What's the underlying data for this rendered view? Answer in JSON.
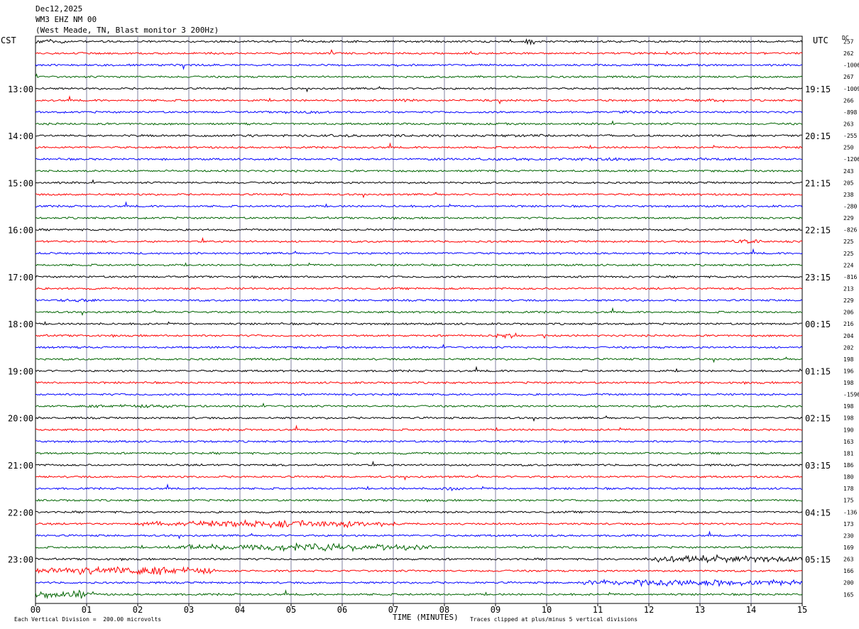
{
  "header": {
    "date": "Dec12,2025",
    "station": "WM3 EHZ NM 00",
    "location": "(West Meade, TN, Blast monitor 3 200Hz)"
  },
  "left_zone": "CST",
  "right_zone": "UTC",
  "dc_label": "DC",
  "footer": {
    "division_note": "Each Vertical Division =  200.00 microvolts",
    "xlabel": "TIME (MINUTES)",
    "clip_note": "Traces clipped at plus/minus 5 vertical divisions"
  },
  "colors": {
    "trace_cycle": [
      "#000000",
      "#ff0000",
      "#0000ff",
      "#006400"
    ],
    "grid": "#8080a0"
  },
  "chart_data": {
    "type": "line",
    "title": "WM3 EHZ NM 00",
    "xlabel": "TIME (MINUTES)",
    "xlim": [
      0,
      15
    ],
    "x_ticks": [
      "00",
      "01",
      "02",
      "03",
      "04",
      "05",
      "06",
      "07",
      "08",
      "09",
      "10",
      "11",
      "12",
      "13",
      "14",
      "15"
    ],
    "left_hour_labels": [
      "13:00",
      "14:00",
      "15:00",
      "16:00",
      "17:00",
      "18:00",
      "19:00",
      "20:00",
      "21:00",
      "22:00",
      "23:00"
    ],
    "right_hour_labels": [
      "19:15",
      "20:15",
      "21:15",
      "22:15",
      "23:15",
      "00:15",
      "01:15",
      "02:15",
      "03:15",
      "04:15",
      "05:15"
    ],
    "dc_offsets": [
      "257",
      "262",
      "-1006",
      "267",
      "-1009",
      "266",
      "-898",
      "263",
      "-255",
      "250",
      "-1206",
      "243",
      "205",
      "238",
      "-280",
      "229",
      "-826",
      "225",
      "225",
      "224",
      "-816",
      "213",
      "229",
      "206",
      "216",
      "204",
      "202",
      "198",
      "196",
      "198",
      "-1596",
      "198",
      "198",
      "190",
      "163",
      "181",
      "186",
      "180",
      "178",
      "175",
      "-136",
      "173",
      "230",
      "169",
      "263",
      "166",
      "200",
      "165"
    ],
    "events": [
      {
        "trace": 0,
        "x_start": 0.0,
        "x_end": 0.6,
        "level": 2.2
      },
      {
        "trace": 0,
        "x_start": 9.55,
        "x_end": 9.75,
        "level": 5
      },
      {
        "trace": 5,
        "x_start": 7.0,
        "x_end": 7.4,
        "level": 2
      },
      {
        "trace": 5,
        "x_start": 12.6,
        "x_end": 13.6,
        "level": 1.8
      },
      {
        "trace": 6,
        "x_start": 4.8,
        "x_end": 5.8,
        "level": 1.6
      },
      {
        "trace": 6,
        "x_start": 11.3,
        "x_end": 12.6,
        "level": 1.6
      },
      {
        "trace": 8,
        "x_start": 0.0,
        "x_end": 15.0,
        "level": 1.4
      },
      {
        "trace": 10,
        "x_start": 7.0,
        "x_end": 15.0,
        "level": 1.6
      },
      {
        "trace": 17,
        "x_start": 13.5,
        "x_end": 14.2,
        "level": 2
      },
      {
        "trace": 22,
        "x_start": 0.5,
        "x_end": 1.2,
        "level": 2.2
      },
      {
        "trace": 25,
        "x_start": 8.95,
        "x_end": 9.4,
        "level": 3
      },
      {
        "trace": 31,
        "x_start": 0.5,
        "x_end": 3.5,
        "level": 1.6
      },
      {
        "trace": 38,
        "x_start": 7.8,
        "x_end": 8.3,
        "level": 2
      },
      {
        "trace": 41,
        "x_start": 2.1,
        "x_end": 7.2,
        "level": 4
      },
      {
        "trace": 43,
        "x_start": 2.6,
        "x_end": 7.8,
        "level": 4
      },
      {
        "trace": 44,
        "x_start": 11.9,
        "x_end": 15.0,
        "level": 4
      },
      {
        "trace": 45,
        "x_start": 0.0,
        "x_end": 3.5,
        "level": 4.5
      },
      {
        "trace": 46,
        "x_start": 10.6,
        "x_end": 15.0,
        "level": 4
      },
      {
        "trace": 47,
        "x_start": 0.0,
        "x_end": 1.2,
        "level": 4
      }
    ]
  }
}
